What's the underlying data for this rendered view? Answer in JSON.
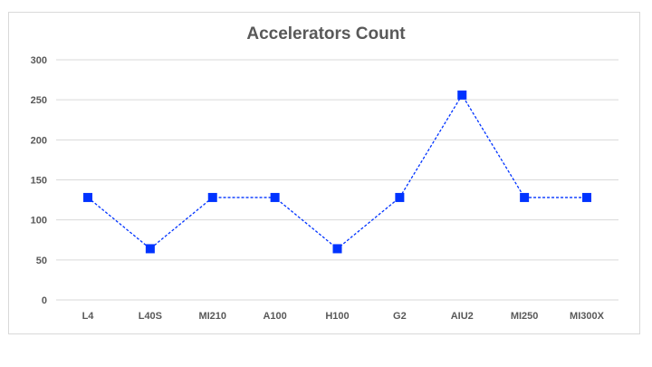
{
  "chart_data": {
    "type": "line",
    "title": "Accelerators Count",
    "xlabel": "",
    "ylabel": "",
    "categories": [
      "L4",
      "L40S",
      "MI210",
      "A100",
      "H100",
      "G2",
      "AIU2",
      "MI250",
      "MI300X"
    ],
    "series": [
      {
        "values": [
          128,
          64,
          128,
          128,
          64,
          128,
          256,
          128,
          128
        ]
      }
    ],
    "ylim": [
      0,
      300
    ],
    "yticks": [
      0,
      50,
      100,
      150,
      200,
      250,
      300
    ],
    "grid": "horizontal",
    "legend": "none",
    "colors": {
      "series": "#0033ff",
      "grid": "#d9d9d9",
      "text": "#595959"
    },
    "line_style": "dashed",
    "marker": "square"
  }
}
